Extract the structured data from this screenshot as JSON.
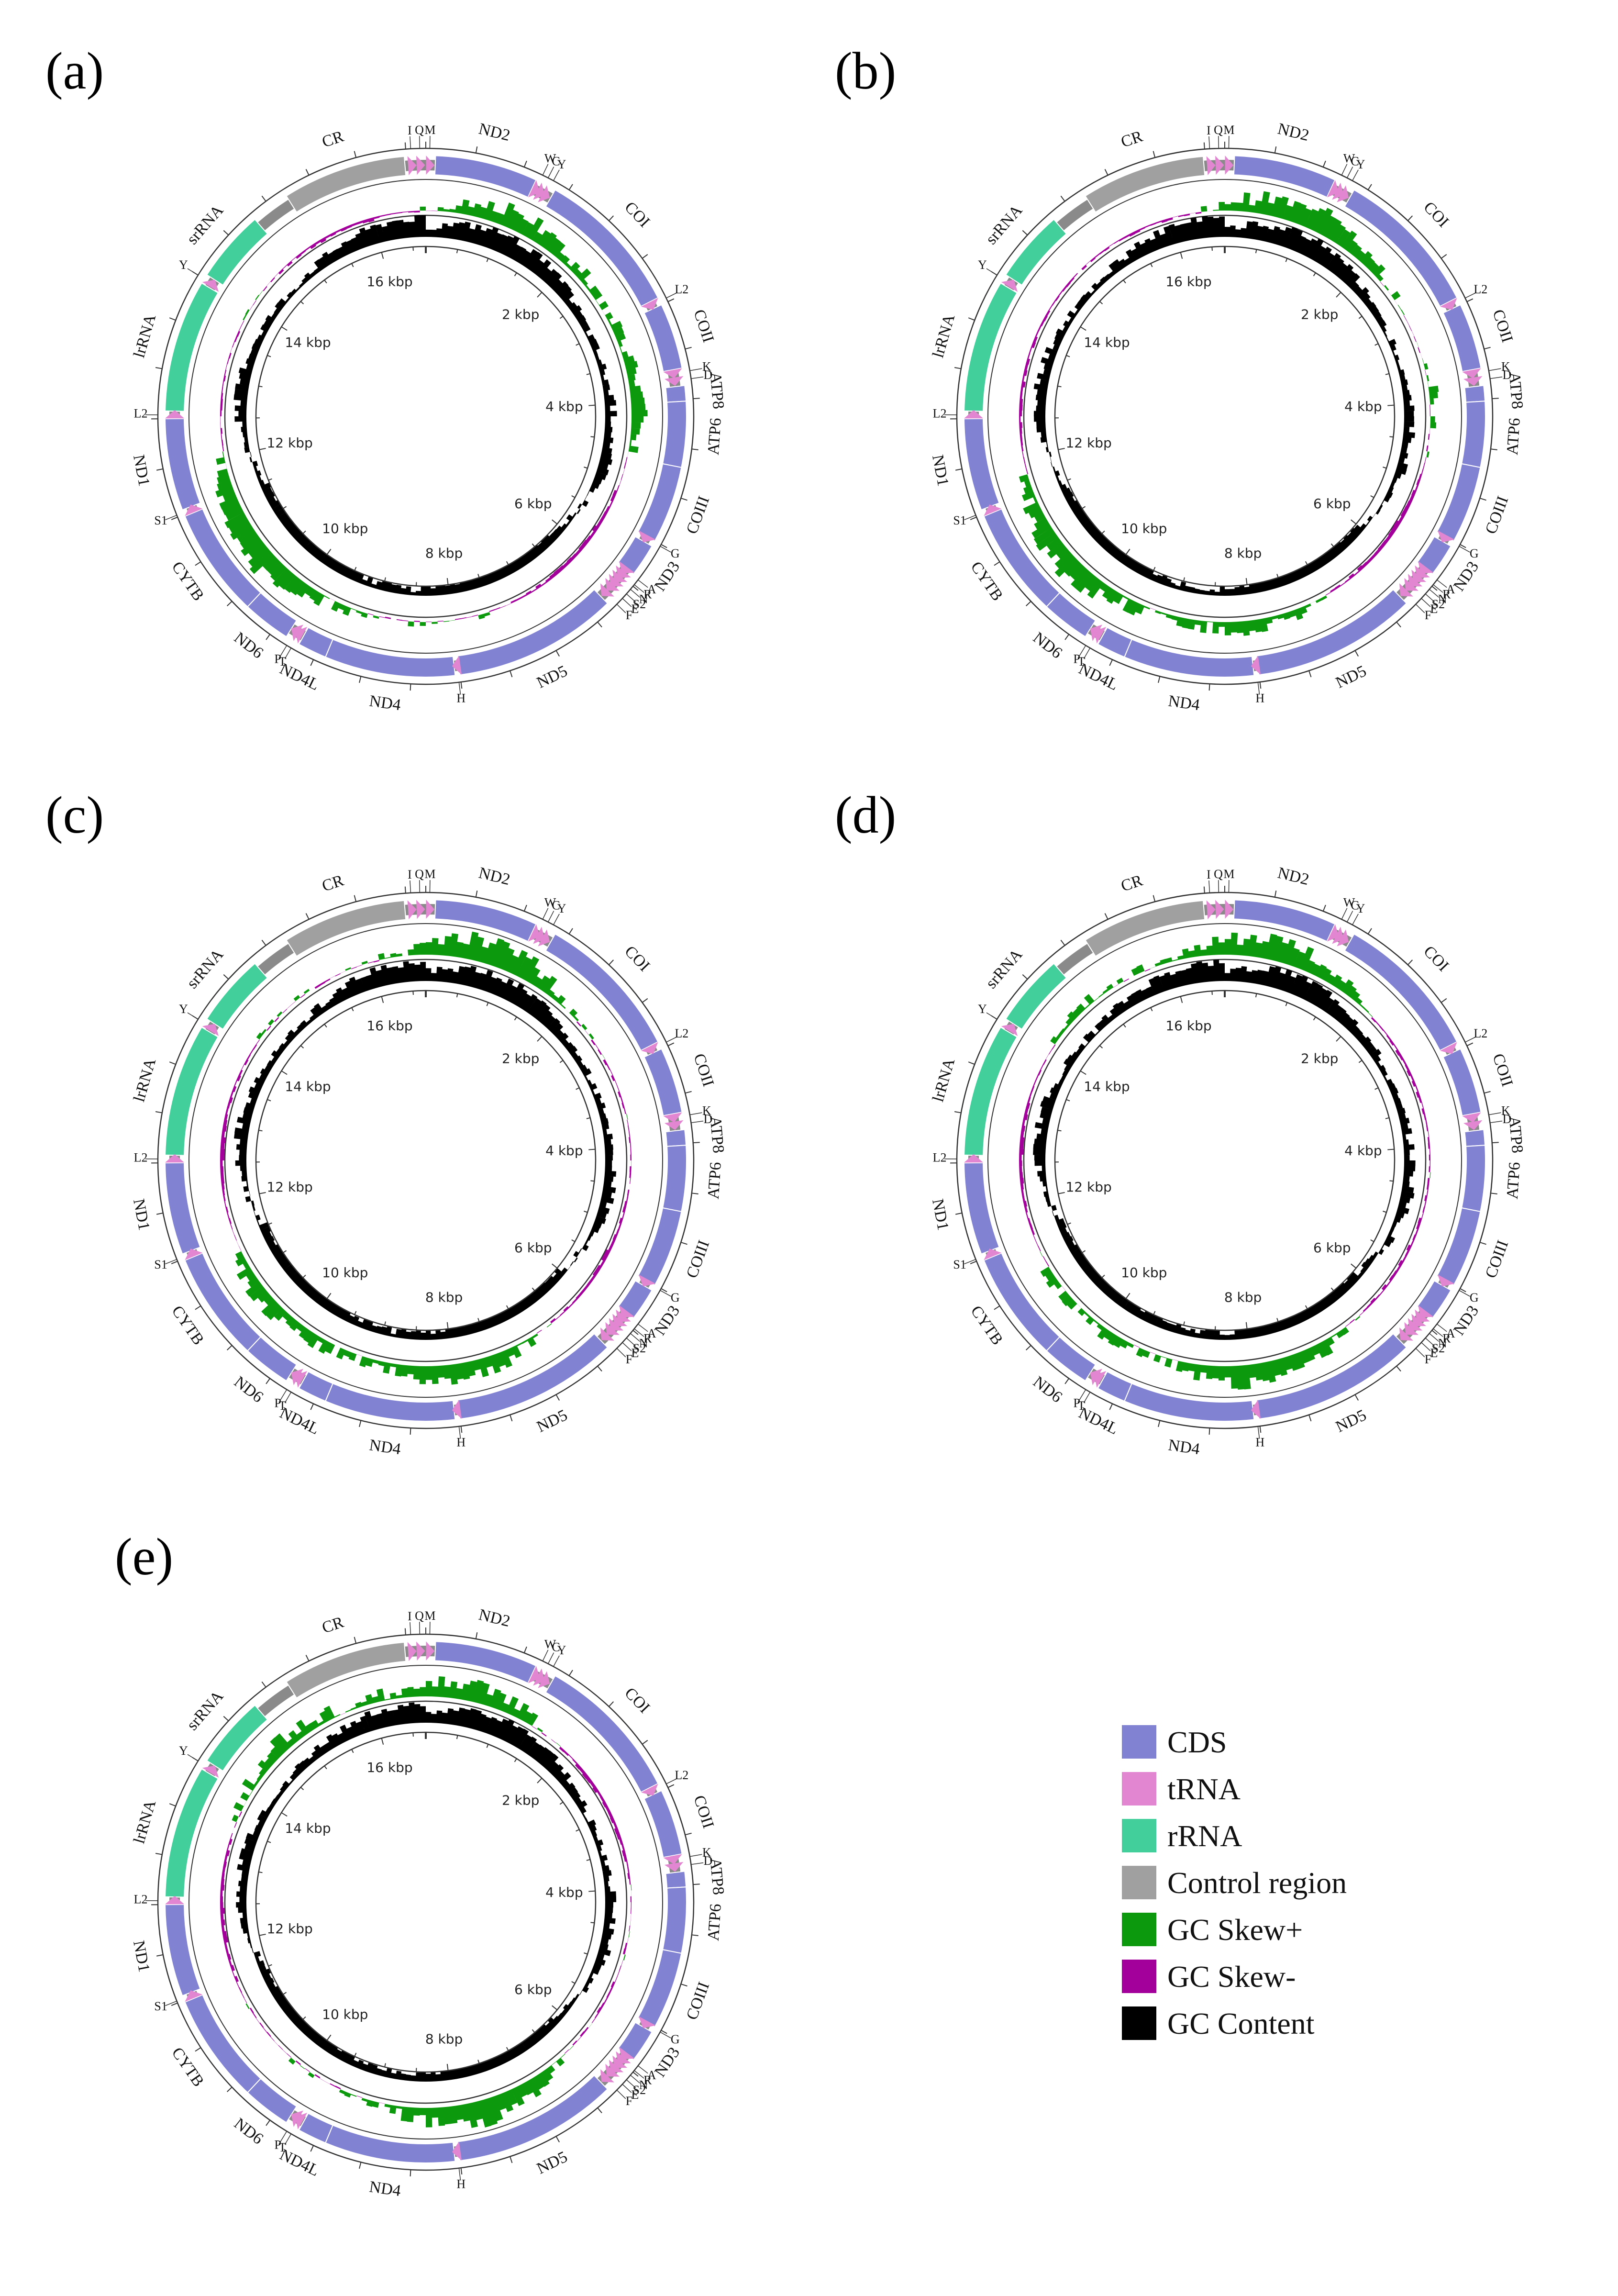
{
  "figure": {
    "panels": [
      {
        "id": "a",
        "label": "(a)"
      },
      {
        "id": "b",
        "label": "(b)"
      },
      {
        "id": "c",
        "label": "(c)"
      },
      {
        "id": "d",
        "label": "(d)"
      },
      {
        "id": "e",
        "label": "(e)"
      }
    ],
    "genome_length_kbp": 16.7,
    "kbp_ticks": [
      "2 kbp",
      "4 kbp",
      "6 kbp",
      "8 kbp",
      "10 kbp",
      "12 kbp",
      "14 kbp",
      "16 kbp"
    ],
    "features": [
      {
        "name": "CR",
        "type": "control",
        "start": 15.2,
        "end": 16.48
      },
      {
        "name": "ND2",
        "type": "cds",
        "start": 0.1,
        "end": 1.16
      },
      {
        "name": "COI",
        "type": "cds",
        "start": 1.38,
        "end": 2.92
      },
      {
        "name": "COII",
        "type": "cds",
        "start": 3.0,
        "end": 3.68
      },
      {
        "name": "ATP8",
        "type": "cds",
        "start": 3.86,
        "end": 4.02
      },
      {
        "name": "ATP6",
        "type": "cds",
        "start": 4.02,
        "end": 4.7
      },
      {
        "name": "COIII",
        "type": "cds",
        "start": 4.7,
        "end": 5.5
      },
      {
        "name": "ND3",
        "type": "cds",
        "start": 5.56,
        "end": 5.9
      },
      {
        "name": "ND5",
        "type": "cds",
        "start": 6.3,
        "end": 8.0
      },
      {
        "name": "ND4",
        "type": "cds",
        "start": 8.05,
        "end": 9.4
      },
      {
        "name": "ND4L",
        "type": "cds",
        "start": 9.4,
        "end": 9.7
      },
      {
        "name": "ND6",
        "type": "cds",
        "start": 9.85,
        "end": 10.35
      },
      {
        "name": "CYTB",
        "type": "cds",
        "start": 10.35,
        "end": 11.48
      },
      {
        "name": "ND1",
        "type": "cds",
        "start": 11.55,
        "end": 12.5
      },
      {
        "name": "lrRNA",
        "type": "rrna",
        "start": 12.58,
        "end": 13.95
      },
      {
        "name": "srRNA",
        "type": "rrna",
        "start": 14.05,
        "end": 14.8
      }
    ],
    "trnas": [
      {
        "name": "I",
        "pos": 16.55
      },
      {
        "name": "Q",
        "pos": 16.64
      },
      {
        "name": "M",
        "pos": 0.04
      },
      {
        "name": "W",
        "pos": 1.2
      },
      {
        "name": "C",
        "pos": 1.26
      },
      {
        "name": "Y",
        "pos": 1.32
      },
      {
        "name": "L2",
        "pos": 2.96
      },
      {
        "name": "K",
        "pos": 3.72
      },
      {
        "name": "D",
        "pos": 3.8
      },
      {
        "name": "G",
        "pos": 5.52
      },
      {
        "name": "A",
        "pos": 5.92
      },
      {
        "name": "R",
        "pos": 5.98
      },
      {
        "name": "N",
        "pos": 6.04
      },
      {
        "name": "S2",
        "pos": 6.1
      },
      {
        "name": "E",
        "pos": 6.16
      },
      {
        "name": "F",
        "pos": 6.24
      },
      {
        "name": "H",
        "pos": 8.02
      },
      {
        "name": "T",
        "pos": 9.75
      },
      {
        "name": "P",
        "pos": 9.8
      },
      {
        "name": "S1",
        "pos": 11.52
      },
      {
        "name": "L2",
        "pos": 12.54
      },
      {
        "name": "Y",
        "pos": 14.0
      }
    ]
  },
  "legend": {
    "items": [
      {
        "label": "CDS",
        "color": "#8282d2"
      },
      {
        "label": "tRNA",
        "color": "#e386d2"
      },
      {
        "label": "rRNA",
        "color": "#42cf9c"
      },
      {
        "label": "Control region",
        "color": "#a0a0a0"
      },
      {
        "label": "GC Skew+",
        "color": "#0d990d"
      },
      {
        "label": "GC Skew-",
        "color": "#a3009b"
      },
      {
        "label": "GC Content",
        "color": "#000000"
      }
    ]
  },
  "colors": {
    "backbone": "#8a8a8a",
    "ring_line": "#333333"
  }
}
